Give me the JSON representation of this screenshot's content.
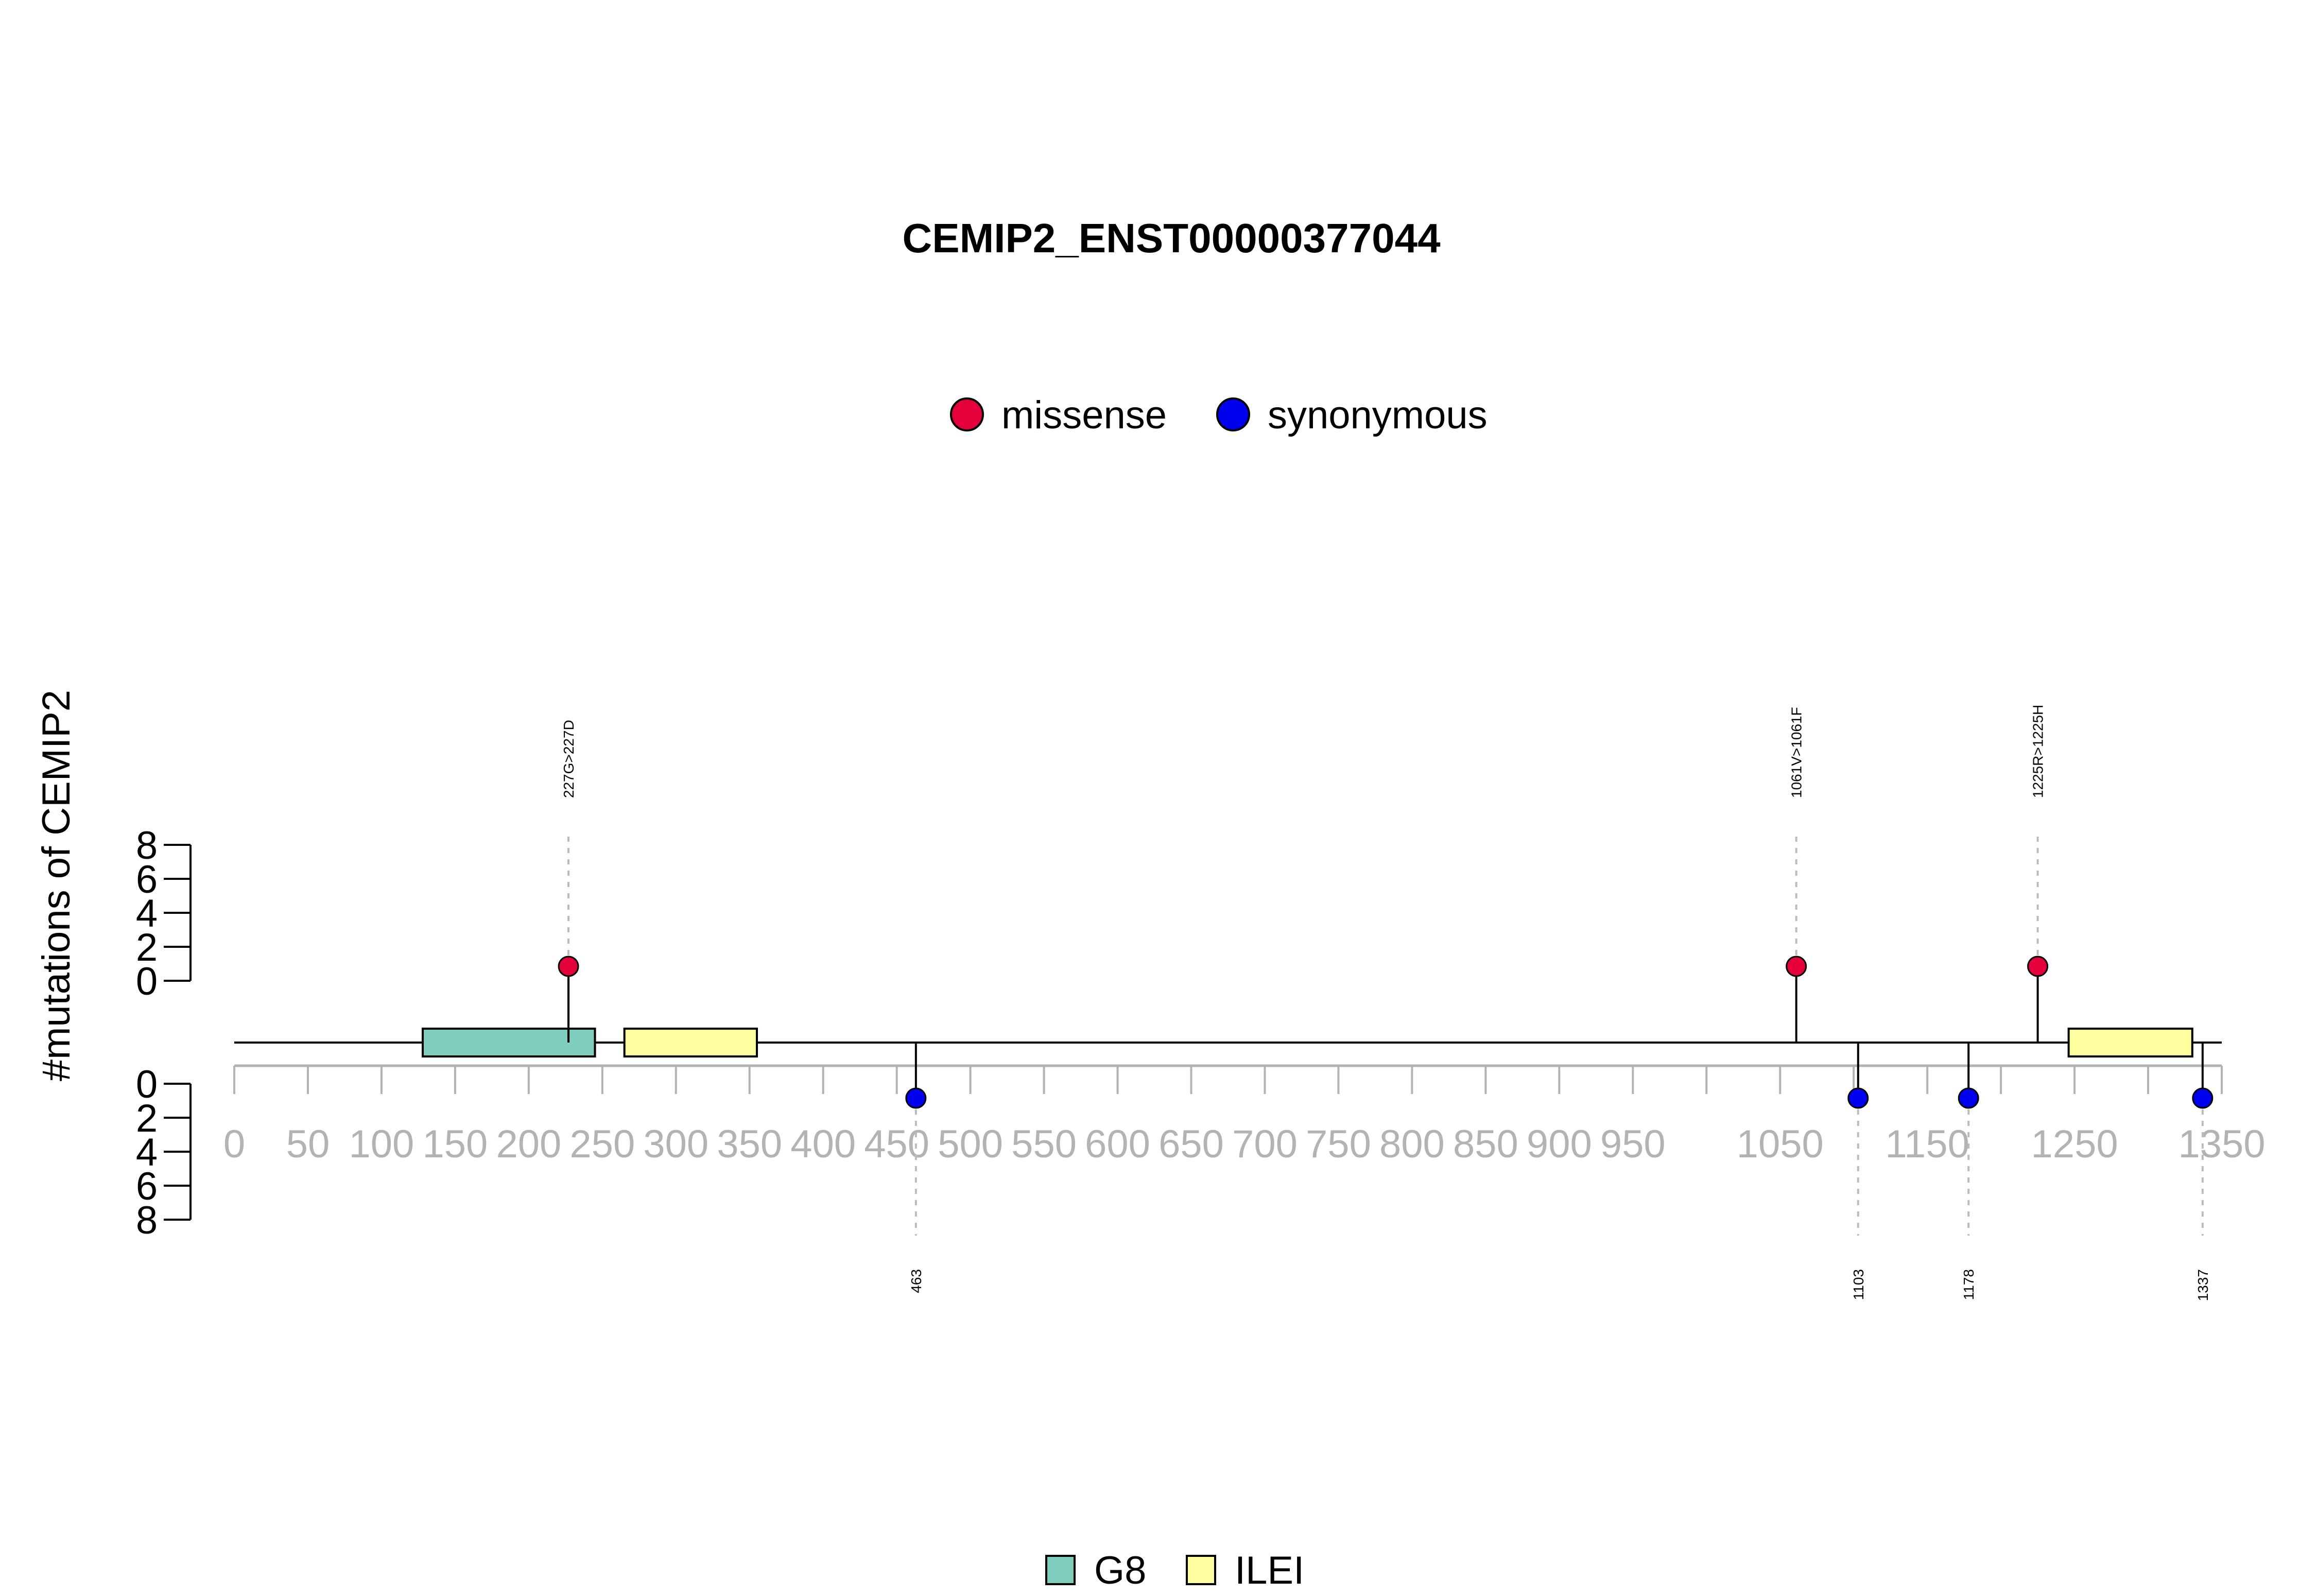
{
  "chart_data": {
    "type": "lollipop",
    "title": "CEMIP2_ENST00000377044",
    "ylabel": "#mutations of CEMIP2",
    "xlim": [
      0,
      1350
    ],
    "x_ticks": [
      0,
      50,
      100,
      150,
      200,
      250,
      300,
      350,
      400,
      450,
      500,
      550,
      600,
      650,
      700,
      750,
      800,
      850,
      900,
      950,
      1050,
      1150,
      1250,
      1350
    ],
    "x_minor_ticks": [
      0,
      50,
      100,
      150,
      200,
      250,
      300,
      350,
      400,
      450,
      500,
      550,
      600,
      650,
      700,
      750,
      800,
      850,
      900,
      950,
      1000,
      1050,
      1100,
      1150,
      1200,
      1250,
      1300,
      1350
    ],
    "y_ticks_top": [
      "0",
      "2",
      "4",
      "6",
      "8"
    ],
    "y_ticks_bottom": [
      "0",
      "2",
      "4",
      "6",
      "8"
    ],
    "legend_mutations": [
      {
        "name": "missense",
        "color": "#e4003a"
      },
      {
        "name": "synonymous",
        "color": "#0000ee"
      }
    ],
    "legend_domains": [
      {
        "name": "G8",
        "color": "#7fcdbb"
      },
      {
        "name": "ILEI",
        "color": "#ffffa0"
      }
    ],
    "domains": [
      {
        "name": "G8",
        "start": 128,
        "end": 245,
        "color": "#7fcdbb"
      },
      {
        "name": "ILEI",
        "start": 265,
        "end": 355,
        "color": "#ffffa0"
      },
      {
        "name": "ILEI",
        "start": 1246,
        "end": 1330,
        "color": "#ffffa0"
      }
    ],
    "mutations_above": [
      {
        "position": 227,
        "label": "227G>227D",
        "type": "missense",
        "count": 1
      },
      {
        "position": 1061,
        "label": "1061V>1061F",
        "type": "missense",
        "count": 1
      },
      {
        "position": 1225,
        "label": "1225R>1225H",
        "type": "missense",
        "count": 1
      }
    ],
    "mutations_below": [
      {
        "position": 463,
        "label": "463",
        "type": "synonymous",
        "count": 1
      },
      {
        "position": 1103,
        "label": "1103",
        "type": "synonymous",
        "count": 1
      },
      {
        "position": 1178,
        "label": "1178",
        "type": "synonymous",
        "count": 1
      },
      {
        "position": 1337,
        "label": "1337",
        "type": "synonymous",
        "count": 1
      }
    ]
  }
}
